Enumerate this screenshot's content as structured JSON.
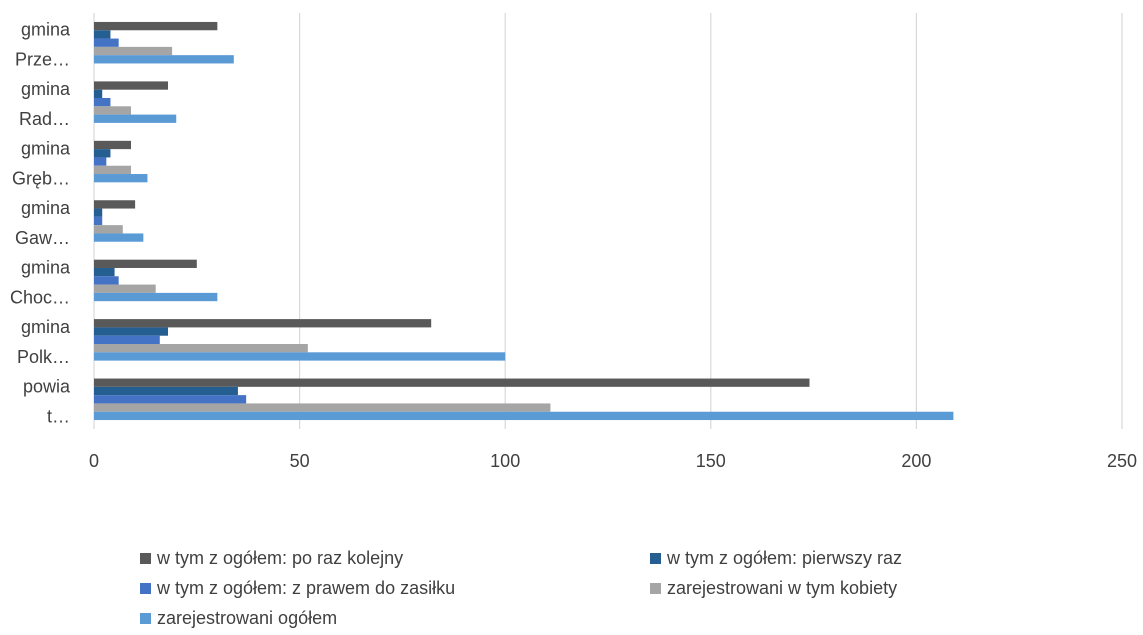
{
  "chart_data": {
    "type": "bar",
    "orientation": "horizontal",
    "categories": [
      [
        "powia",
        "t…"
      ],
      [
        "gmina",
        "Polk…"
      ],
      [
        "gmina",
        "Choc…"
      ],
      [
        "gmina",
        "Gaw…"
      ],
      [
        "gmina",
        "Gręb…"
      ],
      [
        "gmina",
        "Rad…"
      ],
      [
        "gmina",
        "Prze…"
      ]
    ],
    "series": [
      {
        "name": "w tym z ogółem:  po raz kolejny",
        "color": "#595959",
        "values": [
          174,
          82,
          25,
          10,
          9,
          18,
          30
        ]
      },
      {
        "name": "w tym z ogółem:  pierwszy raz",
        "color": "#255E91",
        "values": [
          35,
          18,
          5,
          2,
          4,
          2,
          4
        ]
      },
      {
        "name": "w tym z ogółem: z prawem do zasiłku",
        "color": "#4472C4",
        "values": [
          37,
          16,
          6,
          2,
          3,
          4,
          6
        ]
      },
      {
        "name": "zarejestrowani w tym kobiety",
        "color": "#A5A5A5",
        "values": [
          111,
          52,
          15,
          7,
          9,
          9,
          19
        ]
      },
      {
        "name": "zarejestrowani ogółem",
        "color": "#5B9BD5",
        "values": [
          209,
          100,
          30,
          12,
          13,
          20,
          34
        ]
      }
    ],
    "xlim": [
      0,
      250
    ],
    "xticks": [
      0,
      50,
      100,
      150,
      200,
      250
    ],
    "grid": true,
    "legend_position": "bottom"
  },
  "legend": {
    "items": [
      {
        "label": "w tym z ogółem:  po raz kolejny",
        "color": "#595959"
      },
      {
        "label": "w tym z ogółem:  pierwszy raz",
        "color": "#255E91"
      },
      {
        "label": "w tym z ogółem: z prawem do zasiłku",
        "color": "#4472C4"
      },
      {
        "label": "zarejestrowani w tym kobiety",
        "color": "#A5A5A5"
      },
      {
        "label": "zarejestrowani ogółem",
        "color": "#5B9BD5"
      }
    ]
  }
}
